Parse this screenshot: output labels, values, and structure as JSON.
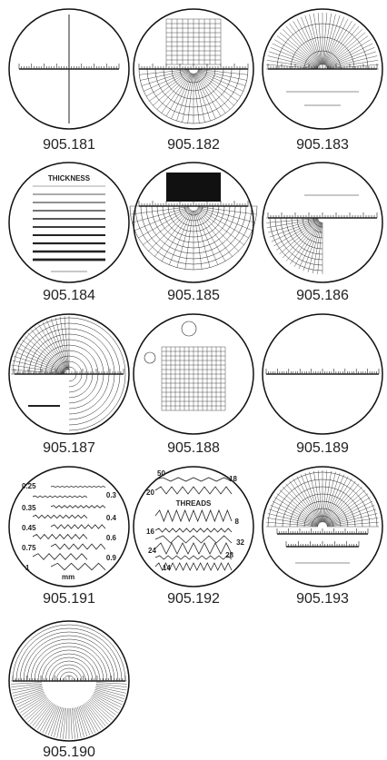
{
  "items": [
    {
      "label": "905.181"
    },
    {
      "label": "905.182"
    },
    {
      "label": "905.183"
    },
    {
      "label": "905.184",
      "texts": [
        "THICKNESS"
      ]
    },
    {
      "label": "905.185"
    },
    {
      "label": "905.186"
    },
    {
      "label": "905.187"
    },
    {
      "label": "905.188"
    },
    {
      "label": "905.189"
    },
    {
      "label": "905.191",
      "texts": [
        "0.25",
        "0.3",
        "0.35",
        "0.4",
        "0.45",
        "0.6",
        "0.75",
        "0.9",
        "1",
        "mm"
      ]
    },
    {
      "label": "905.192",
      "texts": [
        "50",
        "18",
        "20",
        "THREADS",
        "8",
        "16",
        "32",
        "24",
        "28",
        "14"
      ]
    },
    {
      "label": "905.193"
    },
    {
      "label": "905.190"
    }
  ]
}
